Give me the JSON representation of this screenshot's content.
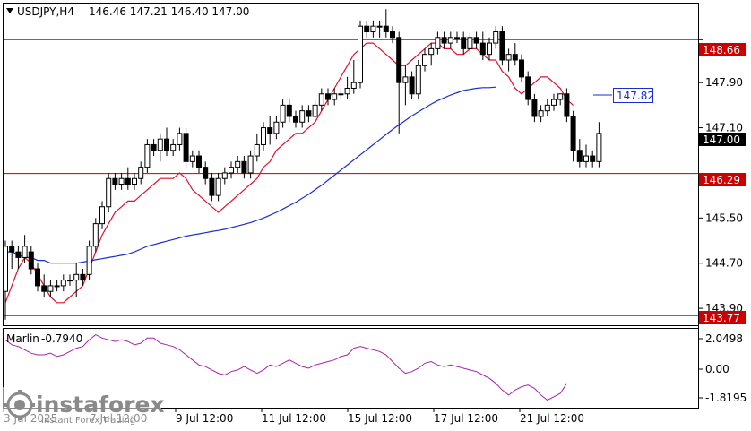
{
  "header": {
    "symbol_timeframe": "USDJPY,H4",
    "ohlc": "146.46 147.21 146.40 147.00"
  },
  "indicator": {
    "name": "Marlin",
    "value": "-0.7940",
    "axis_labels": [
      "2.0498",
      "0.00",
      "-1.8195"
    ]
  },
  "branding": {
    "logo_text": "instaforex",
    "tagline": "Instant Forex Trading"
  },
  "colors": {
    "background": "#ffffff",
    "bull": "#ffffff",
    "bear": "#000000",
    "level_line": "#cc0000",
    "ma_fast": "#e0102a",
    "ma_slow": "#1a2ed0",
    "oscillator": "#aa22aa",
    "callout": "#1a2ed0"
  },
  "chart_data": {
    "type": "candlestick",
    "y_axis": {
      "range": [
        143.6,
        149.3
      ],
      "tick_labels": [
        "148.66",
        "147.90",
        "147.10",
        "146.29",
        "145.50",
        "144.70",
        "143.90",
        "143.77"
      ]
    },
    "x_axis": {
      "tick_labels": [
        "3 Jul 2025",
        "7 Jul 12:00",
        "9 Jul 12:00",
        "11 Jul 12:00",
        "15 Jul 12:00",
        "17 Jul 12:00",
        "21 Jul 12:00"
      ]
    },
    "horizontal_levels": [
      148.66,
      146.29,
      143.77
    ],
    "price_labels": {
      "current": "147.00",
      "level_high": "148.66",
      "level_mid": "146.29",
      "level_low": "143.77",
      "callout": "147.82"
    },
    "candles": [
      [
        144.2,
        145.1,
        143.7,
        145.0
      ],
      [
        145.0,
        145.1,
        144.6,
        144.9
      ],
      [
        144.9,
        145.0,
        144.6,
        144.8
      ],
      [
        144.8,
        145.2,
        144.7,
        145.0
      ],
      [
        144.9,
        145.0,
        144.5,
        144.6
      ],
      [
        144.6,
        144.7,
        144.2,
        144.3
      ],
      [
        144.3,
        144.5,
        144.1,
        144.2
      ],
      [
        144.2,
        144.4,
        144.1,
        144.3
      ],
      [
        144.3,
        144.4,
        144.2,
        144.3
      ],
      [
        144.3,
        144.5,
        144.2,
        144.4
      ],
      [
        144.4,
        144.5,
        144.3,
        144.4
      ],
      [
        144.4,
        144.7,
        144.1,
        144.5
      ],
      [
        144.5,
        144.6,
        144.3,
        144.4
      ],
      [
        144.5,
        145.1,
        144.4,
        145.0
      ],
      [
        145.0,
        145.5,
        144.9,
        145.4
      ],
      [
        145.4,
        145.8,
        145.3,
        145.7
      ],
      [
        145.7,
        146.3,
        145.6,
        146.2
      ],
      [
        146.2,
        146.3,
        146.0,
        146.1
      ],
      [
        146.1,
        146.3,
        146.0,
        146.2
      ],
      [
        146.2,
        146.4,
        146.0,
        146.1
      ],
      [
        146.1,
        146.3,
        146.0,
        146.2
      ],
      [
        146.2,
        146.5,
        146.1,
        146.4
      ],
      [
        146.4,
        146.9,
        146.3,
        146.8
      ],
      [
        146.8,
        146.9,
        146.6,
        146.7
      ],
      [
        146.7,
        147.0,
        146.5,
        146.9
      ],
      [
        146.9,
        147.1,
        146.6,
        146.7
      ],
      [
        146.7,
        146.9,
        146.6,
        146.8
      ],
      [
        146.8,
        147.1,
        146.7,
        147.0
      ],
      [
        147.0,
        147.1,
        146.4,
        146.5
      ],
      [
        146.5,
        146.7,
        146.4,
        146.6
      ],
      [
        146.6,
        146.7,
        146.3,
        146.4
      ],
      [
        146.4,
        146.5,
        146.1,
        146.2
      ],
      [
        146.2,
        146.3,
        145.8,
        145.9
      ],
      [
        145.9,
        146.3,
        145.8,
        146.2
      ],
      [
        146.2,
        146.4,
        146.1,
        146.3
      ],
      [
        146.3,
        146.5,
        146.2,
        146.4
      ],
      [
        146.4,
        146.6,
        146.3,
        146.5
      ],
      [
        146.5,
        146.6,
        146.2,
        146.3
      ],
      [
        146.3,
        146.7,
        146.2,
        146.6
      ],
      [
        146.6,
        147.0,
        146.5,
        146.8
      ],
      [
        146.8,
        147.2,
        146.7,
        147.1
      ],
      [
        147.1,
        147.3,
        146.8,
        147.0
      ],
      [
        147.0,
        147.3,
        146.9,
        147.2
      ],
      [
        147.2,
        147.6,
        147.1,
        147.5
      ],
      [
        147.5,
        147.6,
        147.2,
        147.3
      ],
      [
        147.3,
        147.4,
        147.1,
        147.2
      ],
      [
        147.2,
        147.5,
        147.1,
        147.4
      ],
      [
        147.4,
        147.5,
        147.2,
        147.3
      ],
      [
        147.3,
        147.6,
        147.2,
        147.5
      ],
      [
        147.5,
        147.8,
        147.4,
        147.7
      ],
      [
        147.7,
        147.8,
        147.5,
        147.6
      ],
      [
        147.6,
        147.8,
        147.5,
        147.7
      ],
      [
        147.7,
        147.8,
        147.6,
        147.7
      ],
      [
        147.7,
        148.0,
        147.6,
        147.8
      ],
      [
        147.8,
        148.3,
        147.7,
        147.9
      ],
      [
        147.9,
        149.0,
        147.8,
        148.9
      ],
      [
        148.9,
        149.0,
        148.7,
        148.8
      ],
      [
        148.8,
        149.0,
        148.7,
        148.9
      ],
      [
        148.9,
        149.0,
        148.7,
        148.9
      ],
      [
        148.9,
        149.2,
        148.7,
        148.8
      ],
      [
        148.8,
        148.9,
        148.6,
        148.7
      ],
      [
        148.7,
        148.8,
        147.0,
        147.9
      ],
      [
        147.9,
        148.2,
        147.5,
        148.0
      ],
      [
        148.0,
        148.1,
        147.6,
        147.7
      ],
      [
        147.7,
        148.3,
        147.6,
        148.2
      ],
      [
        148.2,
        148.5,
        148.1,
        148.4
      ],
      [
        148.4,
        148.6,
        148.2,
        148.5
      ],
      [
        148.5,
        148.8,
        148.4,
        148.7
      ],
      [
        148.7,
        148.8,
        148.5,
        148.6
      ],
      [
        148.6,
        148.8,
        148.5,
        148.7
      ],
      [
        148.7,
        148.8,
        148.6,
        148.7
      ],
      [
        148.7,
        148.8,
        148.4,
        148.5
      ],
      [
        148.5,
        148.8,
        148.4,
        148.7
      ],
      [
        148.7,
        148.8,
        148.5,
        148.6
      ],
      [
        148.6,
        148.8,
        148.3,
        148.4
      ],
      [
        148.4,
        148.7,
        148.3,
        148.6
      ],
      [
        148.6,
        148.9,
        148.5,
        148.8
      ],
      [
        148.8,
        148.9,
        148.2,
        148.3
      ],
      [
        148.3,
        148.5,
        148.1,
        148.4
      ],
      [
        148.4,
        148.6,
        148.2,
        148.3
      ],
      [
        148.3,
        148.4,
        147.9,
        148.0
      ],
      [
        148.0,
        148.1,
        147.5,
        147.6
      ],
      [
        147.6,
        147.7,
        147.2,
        147.3
      ],
      [
        147.3,
        147.5,
        147.2,
        147.4
      ],
      [
        147.4,
        147.6,
        147.3,
        147.5
      ],
      [
        147.5,
        147.7,
        147.4,
        147.6
      ],
      [
        147.6,
        147.7,
        147.5,
        147.7
      ],
      [
        147.7,
        147.8,
        147.2,
        147.3
      ],
      [
        147.3,
        147.4,
        146.5,
        146.7
      ],
      [
        146.7,
        146.9,
        146.4,
        146.5
      ],
      [
        146.5,
        146.8,
        146.4,
        146.6
      ],
      [
        146.6,
        146.7,
        146.4,
        146.5
      ],
      [
        146.5,
        147.2,
        146.4,
        147.0
      ]
    ],
    "series": [
      {
        "name": "fast MA",
        "values": [
          144.0,
          144.3,
          144.6,
          144.8,
          144.7,
          144.5,
          144.3,
          144.1,
          144.0,
          144.0,
          144.1,
          144.2,
          144.3,
          144.6,
          144.9,
          145.2,
          145.4,
          145.6,
          145.7,
          145.8,
          145.8,
          145.9,
          146.0,
          146.1,
          146.2,
          146.2,
          146.2,
          146.3,
          146.2,
          146.0,
          145.9,
          145.8,
          145.7,
          145.6,
          145.7,
          145.8,
          145.9,
          146.0,
          146.1,
          146.2,
          146.4,
          146.5,
          146.7,
          146.8,
          146.9,
          147.0,
          147.0,
          147.1,
          147.2,
          147.4,
          147.6,
          147.8,
          148.0,
          148.2,
          148.4,
          148.5,
          148.6,
          148.6,
          148.5,
          148.4,
          148.3,
          148.2,
          148.2,
          148.3,
          148.4,
          148.5,
          148.6,
          148.6,
          148.5,
          148.5,
          148.4,
          148.4,
          148.5,
          148.5,
          148.4,
          148.3,
          148.3,
          148.1,
          148.0,
          147.8,
          147.7,
          147.8,
          147.9,
          148.0,
          148.0,
          147.9,
          147.8,
          147.6,
          147.5
        ]
      },
      {
        "name": "slow MA",
        "values": [
          144.9,
          144.9,
          144.85,
          144.8,
          144.8,
          144.75,
          144.75,
          144.7,
          144.7,
          144.7,
          144.7,
          144.7,
          144.72,
          144.74,
          144.76,
          144.78,
          144.8,
          144.82,
          144.84,
          144.86,
          144.9,
          144.95,
          145.0,
          145.03,
          145.06,
          145.09,
          145.12,
          145.15,
          145.18,
          145.2,
          145.22,
          145.24,
          145.26,
          145.28,
          145.3,
          145.33,
          145.36,
          145.39,
          145.42,
          145.46,
          145.5,
          145.55,
          145.6,
          145.66,
          145.72,
          145.78,
          145.85,
          145.92,
          146.0,
          146.08,
          146.17,
          146.26,
          146.35,
          146.44,
          146.53,
          146.62,
          146.71,
          146.8,
          146.89,
          146.98,
          147.07,
          147.15,
          147.23,
          147.31,
          147.38,
          147.45,
          147.52,
          147.58,
          147.63,
          147.68,
          147.72,
          147.76,
          147.78,
          147.8,
          147.81,
          147.81,
          147.82
        ]
      }
    ],
    "oscillator": {
      "name": "Marlin",
      "range": [
        -2.2,
        2.4
      ],
      "values": [
        1.8,
        1.5,
        1.4,
        1.2,
        1.0,
        0.9,
        0.9,
        1.0,
        0.8,
        0.9,
        1.1,
        1.3,
        1.4,
        1.8,
        2.1,
        1.9,
        1.8,
        1.7,
        1.8,
        1.7,
        1.5,
        1.6,
        1.9,
        1.9,
        1.6,
        1.5,
        1.4,
        1.2,
        0.9,
        0.6,
        0.3,
        0.2,
        0.0,
        -0.2,
        -0.3,
        -0.1,
        0.0,
        0.2,
        0.0,
        -0.2,
        0.0,
        0.3,
        0.2,
        0.4,
        0.6,
        0.4,
        0.2,
        0.1,
        0.3,
        0.4,
        0.5,
        0.6,
        0.8,
        0.9,
        1.3,
        1.4,
        1.3,
        1.2,
        1.1,
        0.9,
        0.5,
        0.1,
        -0.2,
        -0.1,
        0.1,
        0.4,
        0.5,
        0.3,
        0.2,
        0.3,
        0.2,
        0.1,
        0.0,
        -0.1,
        -0.3,
        -0.5,
        -0.8,
        -1.2,
        -1.5,
        -1.2,
        -1.0,
        -0.9,
        -1.1,
        -1.5,
        -1.8,
        -1.6,
        -1.4,
        -0.8
      ]
    }
  }
}
